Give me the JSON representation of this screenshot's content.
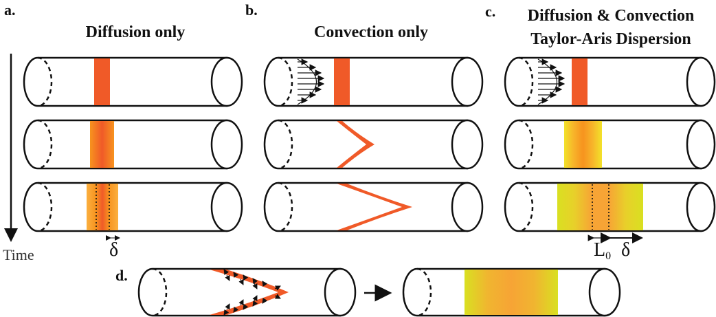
{
  "panels": {
    "a": {
      "letter": "a.",
      "title": "Diffusion only"
    },
    "b": {
      "letter": "b.",
      "title": "Convection only"
    },
    "c": {
      "letter": "c.",
      "title_line1": "Diffusion & Convection",
      "title_line2": "Taylor-Aris Dispersion"
    },
    "d": {
      "letter": "d."
    }
  },
  "time_label": "Time",
  "symbols": {
    "delta": "δ",
    "l0": "L",
    "l0_sub": "0"
  },
  "colors": {
    "orange_red": "#f05a28",
    "orange": "#f7931e",
    "yellow_green": "#d9e021",
    "outline": "#111111"
  }
}
